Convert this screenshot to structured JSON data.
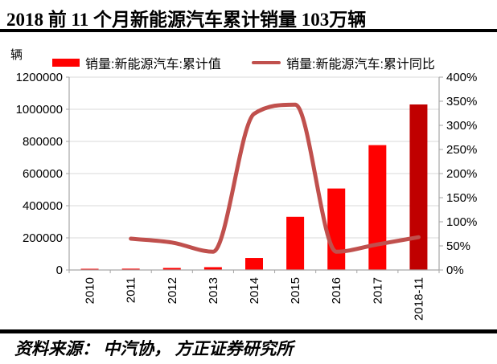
{
  "header": {
    "title": "2018 前 11 个月新能源汽车累计销量 103万辆"
  },
  "footer": {
    "source": "资料来源： 中汽协， 方正证券研究所"
  },
  "colors": {
    "bar": "#FF0000",
    "bar_highlight": "#C00000",
    "line": "#C0504D",
    "grid": "#D9D9D9",
    "axis": "#A6A6A6"
  },
  "chart_data": {
    "type": "combo-bar-line",
    "categories": [
      "2010",
      "2011",
      "2012",
      "2013",
      "2014",
      "2015",
      "2016",
      "2017",
      "2018-11"
    ],
    "series": [
      {
        "name": "销量:新能源汽车:累计值",
        "type": "bar",
        "y_axis": "left",
        "unit": "辆",
        "values": [
          4900,
          8200,
          12800,
          17600,
          74800,
          331000,
          507000,
          777000,
          1030000
        ],
        "color": "#FF0000",
        "highlight_index": 8,
        "highlight_color": "#C00000"
      },
      {
        "name": "销量:新能源汽车:累计同比",
        "type": "line",
        "y_axis": "right",
        "unit": "%",
        "values": [
          null,
          65,
          57,
          38,
          324,
          343,
          38,
          53,
          68
        ],
        "color": "#C0504D"
      }
    ],
    "left_axis": {
      "label": "辆",
      "min": 0,
      "max": 1200000,
      "tick_step": 200000
    },
    "right_axis": {
      "min": 0,
      "max": 400,
      "tick_step": 50,
      "format": "percent"
    },
    "grid": true,
    "legend_position": "top"
  }
}
